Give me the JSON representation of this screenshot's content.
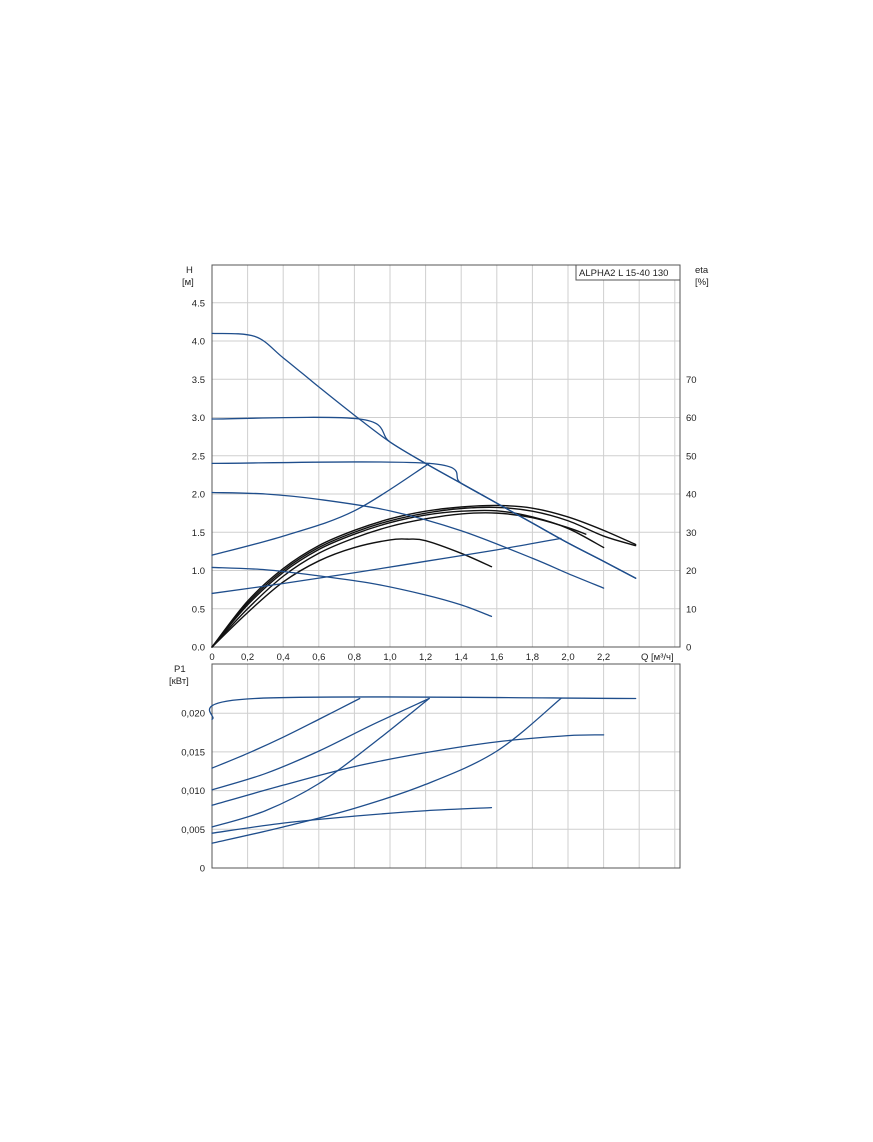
{
  "chart_data": [
    {
      "type": "line",
      "model_label": "ALPHA2 L 15-40 130",
      "ylabel": "H",
      "yunit": "[м]",
      "y2label": "eta",
      "y2unit": "[%]",
      "xlabel": "Q [м³/ч]",
      "xlim": [
        0,
        2.6
      ],
      "ylim": [
        0,
        5.0
      ],
      "y2lim": [
        0,
        100
      ],
      "xticks": [
        "0",
        "0,2",
        "0,4",
        "0,6",
        "0,8",
        "1,0",
        "1,2",
        "1,4",
        "1,6",
        "1,8",
        "2,0",
        "2,2"
      ],
      "yticks": [
        "0.0",
        "0.5",
        "1.0",
        "1.5",
        "2.0",
        "2.5",
        "3.0",
        "3.5",
        "4.0",
        "4.5"
      ],
      "y2ticks": [
        "0",
        "10",
        "20",
        "30",
        "40",
        "50",
        "60",
        "70"
      ],
      "grid": true,
      "colors": {
        "head": "#1f4e8c",
        "efficiency": "#111111"
      },
      "head_series": [
        {
          "points": [
            [
              0,
              4.1
            ],
            [
              0.24,
              4.06
            ],
            [
              0.4,
              3.78
            ],
            [
              0.6,
              3.4
            ],
            [
              0.8,
              3.03
            ],
            [
              1.0,
              2.68
            ],
            [
              1.2,
              2.4
            ],
            [
              1.4,
              2.14
            ],
            [
              1.6,
              1.88
            ],
            [
              1.8,
              1.62
            ],
            [
              2.0,
              1.36
            ],
            [
              2.2,
              1.12
            ],
            [
              2.38,
              0.9
            ]
          ]
        },
        {
          "points": [
            [
              0,
              2.98
            ],
            [
              0.83,
              2.98
            ],
            [
              1.0,
              2.68
            ],
            [
              1.2,
              2.4
            ],
            [
              1.4,
              2.14
            ],
            [
              1.6,
              1.88
            ],
            [
              1.8,
              1.62
            ],
            [
              2.0,
              1.36
            ],
            [
              2.2,
              1.12
            ],
            [
              2.38,
              0.9
            ]
          ]
        },
        {
          "points": [
            [
              0,
              2.4
            ],
            [
              1.22,
              2.4
            ],
            [
              1.4,
              2.14
            ],
            [
              1.6,
              1.88
            ],
            [
              1.8,
              1.62
            ],
            [
              2.0,
              1.36
            ],
            [
              2.2,
              1.12
            ],
            [
              2.38,
              0.9
            ]
          ]
        },
        {
          "points": [
            [
              0,
              1.2
            ],
            [
              0.4,
              1.45
            ],
            [
              0.8,
              1.78
            ],
            [
              1.22,
              2.4
            ]
          ]
        },
        {
          "points": [
            [
              0,
              0.7
            ],
            [
              0.4,
              0.83
            ],
            [
              0.8,
              0.97
            ],
            [
              1.2,
              1.12
            ],
            [
              1.6,
              1.27
            ],
            [
              1.96,
              1.42
            ]
          ]
        },
        {
          "points": [
            [
              0,
              2.02
            ],
            [
              0.3,
              2.0
            ],
            [
              0.6,
              1.93
            ],
            [
              1.0,
              1.78
            ],
            [
              1.4,
              1.52
            ],
            [
              1.8,
              1.16
            ],
            [
              2.0,
              0.96
            ],
            [
              2.2,
              0.77
            ]
          ]
        },
        {
          "points": [
            [
              0,
              1.04
            ],
            [
              0.3,
              1.01
            ],
            [
              0.6,
              0.93
            ],
            [
              0.9,
              0.83
            ],
            [
              1.2,
              0.68
            ],
            [
              1.4,
              0.55
            ],
            [
              1.57,
              0.4
            ]
          ]
        }
      ],
      "efficiency_series": [
        {
          "points": [
            [
              0,
              0
            ],
            [
              0.2,
              12
            ],
            [
              0.4,
              20.5
            ],
            [
              0.6,
              26.5
            ],
            [
              0.8,
              30.5
            ],
            [
              1.0,
              33.5
            ],
            [
              1.2,
              35.5
            ],
            [
              1.4,
              36.6
            ],
            [
              1.6,
              37
            ],
            [
              1.8,
              36.3
            ],
            [
              2.0,
              34
            ],
            [
              2.2,
              30.5
            ],
            [
              2.38,
              26.8
            ]
          ]
        },
        {
          "points": [
            [
              0,
              0
            ],
            [
              0.2,
              11.5
            ],
            [
              0.4,
              20
            ],
            [
              0.6,
              26
            ],
            [
              0.8,
              30
            ],
            [
              1.0,
              33
            ],
            [
              1.2,
              35
            ],
            [
              1.4,
              36.2
            ],
            [
              1.6,
              36.5
            ],
            [
              1.8,
              35.5
            ],
            [
              2.0,
              33
            ],
            [
              2.2,
              29
            ],
            [
              2.38,
              26.5
            ]
          ]
        },
        {
          "points": [
            [
              0,
              0
            ],
            [
              0.2,
              11
            ],
            [
              0.4,
              19.5
            ],
            [
              0.6,
              25.5
            ],
            [
              0.8,
              29.5
            ],
            [
              1.0,
              32.5
            ],
            [
              1.2,
              34.5
            ],
            [
              1.4,
              35.5
            ],
            [
              1.6,
              35.6
            ],
            [
              1.8,
              34
            ],
            [
              2.0,
              31
            ],
            [
              2.2,
              26
            ]
          ]
        },
        {
          "points": [
            [
              0,
              0
            ],
            [
              0.2,
              10
            ],
            [
              0.4,
              18.5
            ],
            [
              0.6,
              24.5
            ],
            [
              0.8,
              28.5
            ],
            [
              1.0,
              31.5
            ],
            [
              1.2,
              33.5
            ],
            [
              1.4,
              34.8
            ],
            [
              1.6,
              35
            ],
            [
              1.8,
              33.8
            ],
            [
              2.0,
              31.2
            ],
            [
              2.1,
              29.5
            ]
          ]
        },
        {
          "points": [
            [
              0,
              0
            ],
            [
              0.2,
              9
            ],
            [
              0.4,
              17
            ],
            [
              0.6,
              22.5
            ],
            [
              0.8,
              26
            ],
            [
              1.0,
              28
            ],
            [
              1.1,
              28.2
            ],
            [
              1.2,
              27.8
            ],
            [
              1.4,
              24.5
            ],
            [
              1.57,
              21
            ]
          ]
        }
      ]
    },
    {
      "type": "line",
      "ylabel": "P1",
      "yunit": "[кВт]",
      "xlim": [
        0,
        2.6
      ],
      "ylim": [
        0,
        0.025
      ],
      "yticks": [
        "0",
        "0,005",
        "0,010",
        "0,015",
        "0,020"
      ],
      "grid": true,
      "colors": {
        "power": "#1f4e8c"
      },
      "power_series": [
        {
          "points": [
            [
              0,
              0.0192
            ],
            [
              0.24,
              0.0219
            ],
            [
              2.38,
              0.0219
            ]
          ]
        },
        {
          "points": [
            [
              0,
              0.0129
            ],
            [
              0.2,
              0.0148
            ],
            [
              0.4,
              0.0169
            ],
            [
              0.6,
              0.0192
            ],
            [
              0.83,
              0.0219
            ]
          ]
        },
        {
          "points": [
            [
              0,
              0.0101
            ],
            [
              0.3,
              0.0122
            ],
            [
              0.6,
              0.0151
            ],
            [
              0.9,
              0.0185
            ],
            [
              1.22,
              0.0219
            ]
          ]
        },
        {
          "points": [
            [
              0,
              0.0053
            ],
            [
              0.3,
              0.0074
            ],
            [
              0.6,
              0.0109
            ],
            [
              0.9,
              0.016
            ],
            [
              1.22,
              0.0219
            ]
          ]
        },
        {
          "points": [
            [
              0,
              0.0032
            ],
            [
              0.4,
              0.0053
            ],
            [
              0.8,
              0.0077
            ],
            [
              1.2,
              0.0108
            ],
            [
              1.6,
              0.0151
            ],
            [
              1.96,
              0.0219
            ]
          ]
        },
        {
          "points": [
            [
              0,
              0.0081
            ],
            [
              0.4,
              0.0107
            ],
            [
              0.8,
              0.0131
            ],
            [
              1.2,
              0.0149
            ],
            [
              1.6,
              0.0163
            ],
            [
              2.0,
              0.0171
            ],
            [
              2.2,
              0.0172
            ]
          ]
        },
        {
          "points": [
            [
              0,
              0.0045
            ],
            [
              0.4,
              0.0058
            ],
            [
              0.8,
              0.0067
            ],
            [
              1.2,
              0.0074
            ],
            [
              1.57,
              0.0078
            ]
          ]
        }
      ]
    }
  ]
}
